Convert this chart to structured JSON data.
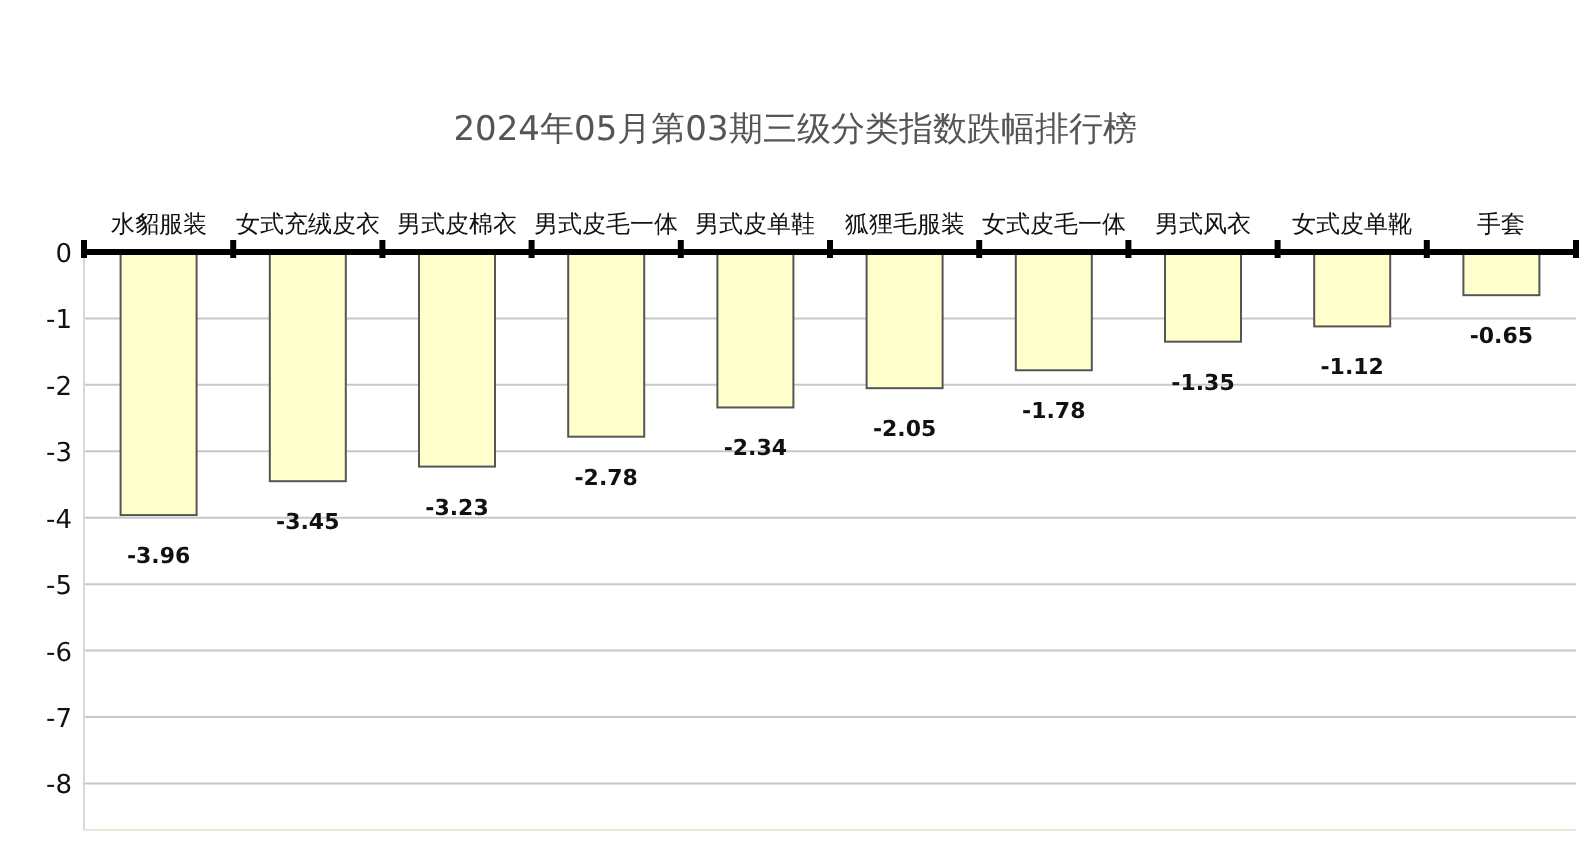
{
  "chart_data": {
    "type": "bar",
    "title": "2024年05月第03期三级分类指数跌幅排行榜",
    "categories": [
      "水貂服装",
      "女式充绒皮衣",
      "男式皮棉衣",
      "男式皮毛一体",
      "男式皮单鞋",
      "狐狸毛服装",
      "女式皮毛一体",
      "男式风衣",
      "女式皮单靴",
      "手套"
    ],
    "values": [
      -3.96,
      -3.45,
      -3.23,
      -2.78,
      -2.34,
      -2.05,
      -1.78,
      -1.35,
      -1.12,
      -0.65
    ],
    "color": "#ffffcc",
    "ylim": [
      -8.7,
      0
    ],
    "yticks": [
      0,
      -1,
      -2,
      -3,
      -4,
      -5,
      -6,
      -7,
      -8
    ],
    "grid": "y",
    "data_labels": true
  }
}
